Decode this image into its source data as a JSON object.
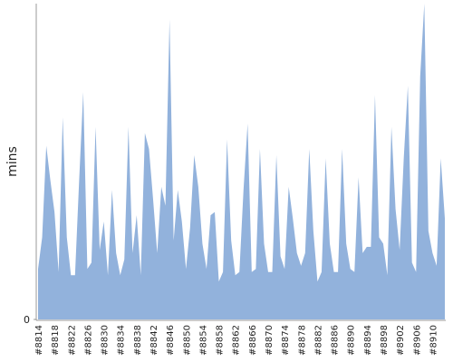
{
  "chart_data": {
    "type": "area",
    "y_label": "mins",
    "categories": [
      "#8814",
      null,
      null,
      null,
      "#8818",
      null,
      null,
      null,
      "#8822",
      null,
      null,
      null,
      "#8826",
      null,
      null,
      null,
      "#8830",
      null,
      null,
      null,
      "#8834",
      null,
      null,
      null,
      "#8838",
      null,
      null,
      null,
      "#8842",
      null,
      null,
      null,
      "#8846",
      null,
      null,
      null,
      "#8850",
      null,
      null,
      null,
      "#8854",
      null,
      null,
      null,
      "#8858",
      null,
      null,
      null,
      "#8862",
      null,
      null,
      null,
      "#8866",
      null,
      null,
      null,
      "#8870",
      null,
      null,
      null,
      "#8874",
      null,
      null,
      null,
      "#8878",
      null,
      null,
      null,
      "#8882",
      null,
      null,
      null,
      "#8886",
      null,
      null,
      null,
      "#8890",
      null,
      null,
      null,
      "#8894",
      null,
      null,
      null,
      "#8898",
      null,
      null,
      null,
      "#8902",
      null,
      null,
      null,
      "#8906",
      null,
      null,
      null,
      "#8910",
      null,
      null,
      null
    ],
    "values": [
      16,
      26,
      55,
      44,
      34,
      15,
      64,
      26,
      14,
      14,
      44,
      72,
      16,
      18,
      61,
      22,
      31,
      14,
      41,
      21,
      14,
      19,
      61,
      21,
      33,
      14,
      59,
      54,
      38,
      21,
      42,
      36,
      95,
      25,
      41,
      31,
      16,
      29,
      52,
      42,
      24,
      16,
      33,
      34,
      12,
      15,
      57,
      25,
      14,
      15,
      41,
      62,
      15,
      16,
      54,
      24,
      15,
      15,
      52,
      20,
      16,
      42,
      32,
      21,
      17,
      21,
      54,
      28,
      12,
      15,
      51,
      24,
      15,
      15,
      54,
      24,
      16,
      15,
      45,
      21,
      23,
      23,
      71,
      26,
      24,
      14,
      61,
      35,
      22,
      51,
      74,
      18,
      15,
      77,
      100,
      28,
      21,
      17,
      51,
      32
    ],
    "color": "#92b2dc",
    "ylim": [
      0,
      100
    ],
    "yticks": [
      0
    ]
  }
}
